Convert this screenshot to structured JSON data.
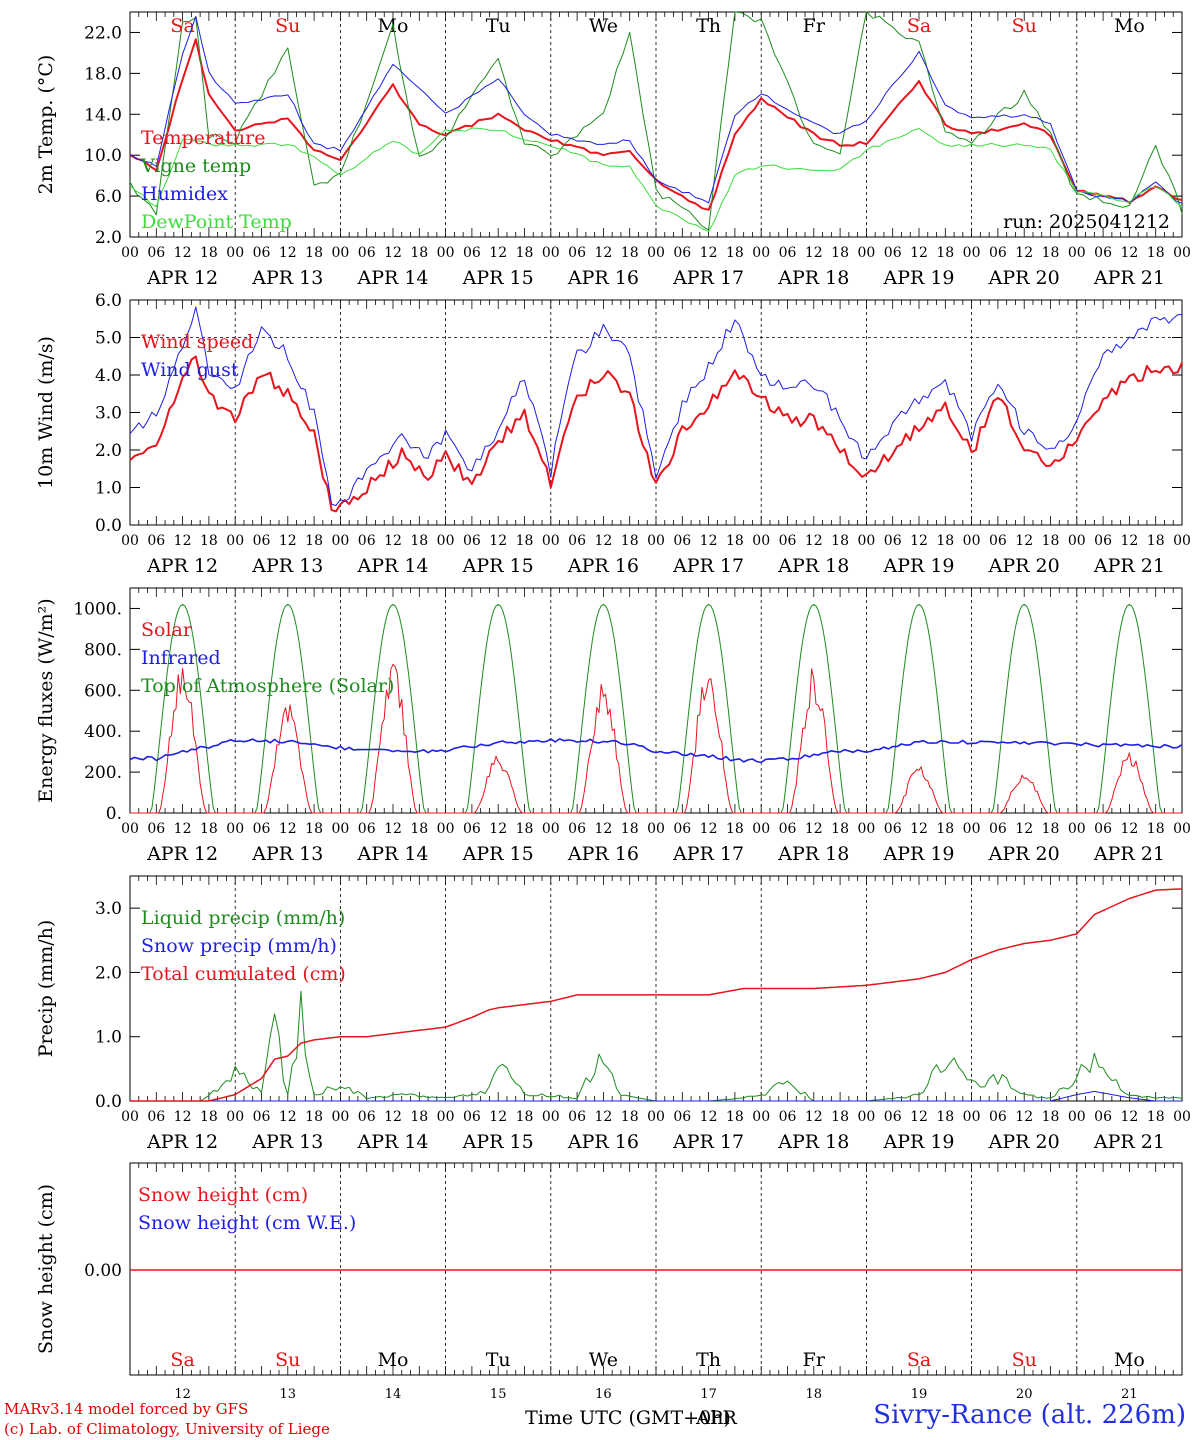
{
  "colors": {
    "red": "#e8141e",
    "blue": "#1e1ee6",
    "green": "#1e8c1e",
    "lightgreen": "#3cdc3c",
    "axis": "#000000",
    "weekend": "#e81414"
  },
  "days": [
    {
      "date": "APR 12",
      "num": "12",
      "dow": "Sa",
      "weekend": true
    },
    {
      "date": "APR 13",
      "num": "13",
      "dow": "Su",
      "weekend": true
    },
    {
      "date": "APR 14",
      "num": "14",
      "dow": "Mo",
      "weekend": false
    },
    {
      "date": "APR 15",
      "num": "15",
      "dow": "Tu",
      "weekend": false
    },
    {
      "date": "APR 16",
      "num": "16",
      "dow": "We",
      "weekend": false
    },
    {
      "date": "APR 17",
      "num": "17",
      "dow": "Th",
      "weekend": false
    },
    {
      "date": "APR 18",
      "num": "18",
      "dow": "Fr",
      "weekend": false
    },
    {
      "date": "APR 19",
      "num": "19",
      "dow": "Sa",
      "weekend": true
    },
    {
      "date": "APR 20",
      "num": "20",
      "dow": "Su",
      "weekend": true
    },
    {
      "date": "APR 21",
      "num": "21",
      "dow": "Mo",
      "weekend": false
    }
  ],
  "hour_ticks": [
    "00",
    "06",
    "12",
    "18"
  ],
  "footer": {
    "credit_1": "MARv3.14 model forced by GFS",
    "credit_2": "(c) Lab. of Climatology, University of Liege",
    "time_label": "Time UTC (GMT+0h)",
    "month": "APR",
    "site": "Sivry-Rance (alt. 226m)"
  },
  "chart_data": [
    {
      "type": "line",
      "ylabel": "2m Temp. (°C)",
      "ylim": [
        2,
        24
      ],
      "yticks": [
        "2.0",
        "6.0",
        "10.0",
        "14.0",
        "18.0",
        "22.0"
      ],
      "ytick_values": [
        2,
        6,
        10,
        14,
        18,
        22
      ],
      "annotation": "run: 2025041212",
      "x_hours": [
        0,
        6,
        12,
        15,
        18,
        24,
        36,
        42,
        48,
        60,
        66,
        72,
        84,
        90,
        96,
        108,
        114,
        120,
        132,
        138,
        144,
        156,
        162,
        168,
        180,
        186,
        192,
        204,
        210,
        216,
        228,
        234,
        240
      ],
      "series": [
        {
          "name": "Temperature",
          "color": "#e8141e",
          "width": 2,
          "values": [
            10.2,
            8.5,
            17.5,
            21.2,
            16.0,
            12.5,
            13.5,
            10.5,
            9.5,
            16.8,
            13.0,
            12.0,
            14.0,
            12.5,
            11.5,
            10.0,
            10.5,
            7.5,
            4.5,
            12.0,
            15.5,
            12.0,
            11.0,
            11.2,
            17.2,
            13.0,
            12.0,
            13.0,
            12.0,
            6.5,
            5.5,
            6.8,
            5.5
          ]
        },
        {
          "name": "Vigne temp",
          "color": "#1e8c1e",
          "width": 1,
          "values": [
            7.0,
            4.5,
            23.0,
            23.5,
            12.0,
            11.5,
            20.5,
            7.0,
            8.0,
            22.5,
            9.5,
            12.0,
            19.5,
            11.0,
            10.0,
            14.0,
            22.0,
            6.5,
            3.0,
            24.0,
            23.0,
            11.0,
            10.5,
            24.0,
            21.0,
            12.0,
            11.5,
            16.0,
            12.0,
            6.0,
            5.0,
            11.0,
            4.5
          ]
        },
        {
          "name": "Humidex",
          "color": "#1e1ee6",
          "width": 1,
          "values": [
            10.0,
            9.0,
            20.0,
            23.5,
            18.0,
            15.0,
            16.0,
            11.0,
            10.5,
            18.8,
            16.5,
            14.0,
            17.5,
            14.0,
            12.0,
            11.0,
            11.5,
            7.5,
            5.5,
            14.0,
            16.0,
            13.0,
            12.0,
            13.5,
            20.0,
            15.0,
            13.5,
            14.0,
            13.0,
            6.5,
            5.5,
            7.3,
            5.2
          ]
        },
        {
          "name": "DewPoint Temp",
          "color": "#3cdc3c",
          "width": 1,
          "values": [
            7.0,
            5.0,
            11.5,
            11.5,
            11.0,
            11.0,
            11.0,
            10.0,
            8.0,
            11.5,
            10.0,
            12.5,
            12.5,
            11.5,
            11.0,
            9.0,
            9.0,
            5.0,
            2.5,
            8.0,
            9.0,
            8.5,
            8.5,
            10.5,
            12.5,
            11.0,
            11.0,
            11.0,
            10.5,
            6.5,
            5.5,
            7.0,
            5.0
          ]
        }
      ]
    },
    {
      "type": "line",
      "ylabel": "10m Wind (m/s)",
      "ylim": [
        0,
        6
      ],
      "yticks": [
        "0.0",
        "1.0",
        "2.0",
        "3.0",
        "4.0",
        "5.0",
        "6.0"
      ],
      "ytick_values": [
        0,
        1,
        2,
        3,
        4,
        5,
        6
      ],
      "ref_line": 5.0,
      "x_hours": [
        0,
        6,
        12,
        15,
        18,
        24,
        30,
        36,
        42,
        46,
        50,
        56,
        62,
        68,
        72,
        78,
        84,
        90,
        96,
        100,
        102,
        108,
        114,
        120,
        126,
        132,
        138,
        144,
        150,
        156,
        160,
        168,
        174,
        180,
        186,
        192,
        198,
        204,
        210,
        216,
        222,
        228,
        234,
        240
      ],
      "series": [
        {
          "name": "Wind speed",
          "color": "#e8141e",
          "width": 2,
          "values": [
            1.9,
            2.2,
            3.8,
            4.5,
            3.4,
            2.8,
            4.1,
            3.5,
            2.4,
            0.4,
            0.6,
            1.2,
            1.9,
            1.3,
            1.8,
            1.1,
            2.2,
            3.0,
            1.1,
            2.9,
            3.4,
            4.1,
            3.5,
            1.0,
            2.5,
            3.2,
            4.2,
            3.4,
            2.8,
            2.8,
            2.4,
            1.2,
            2.0,
            2.6,
            3.2,
            1.9,
            3.5,
            2.1,
            1.5,
            2.3,
            3.4,
            3.8,
            4.2,
            4.2
          ]
        },
        {
          "name": "Wind gust",
          "color": "#1e1ee6",
          "width": 1,
          "values": [
            2.5,
            3.0,
            4.8,
            5.8,
            4.0,
            3.6,
            5.3,
            4.5,
            3.0,
            0.5,
            0.8,
            1.7,
            2.4,
            1.8,
            2.5,
            1.4,
            2.6,
            3.9,
            1.4,
            3.9,
            4.5,
            5.3,
            4.5,
            1.3,
            3.2,
            4.2,
            5.5,
            4.0,
            3.6,
            3.8,
            3.2,
            1.7,
            2.7,
            3.3,
            3.9,
            2.4,
            3.9,
            2.5,
            1.9,
            2.8,
            4.5,
            5.0,
            5.4,
            5.5
          ]
        }
      ]
    },
    {
      "type": "line",
      "ylabel": "Energy fluxes (W/m²)",
      "ylim": [
        0,
        1100
      ],
      "yticks": [
        "0.",
        "200.",
        "400.",
        "600.",
        "800.",
        "1000."
      ],
      "ytick_values": [
        0,
        200,
        400,
        600,
        800,
        1000
      ],
      "solar_peaks": [
        740,
        540,
        750,
        290,
        680,
        760,
        720,
        230,
        210,
        300
      ],
      "toa_peak": 1020,
      "infrared_hours": [
        0,
        6,
        12,
        18,
        24,
        36,
        48,
        60,
        72,
        84,
        96,
        108,
        114,
        120,
        132,
        138,
        144,
        156,
        162,
        168,
        180,
        192,
        204,
        216,
        228,
        240
      ],
      "series": [
        {
          "name": "Solar",
          "color": "#e8141e",
          "width": 1
        },
        {
          "name": "Infrared",
          "color": "#1e1ee6",
          "width": 1.6,
          "values": [
            270,
            265,
            300,
            325,
            355,
            350,
            320,
            300,
            305,
            345,
            355,
            350,
            340,
            300,
            280,
            260,
            255,
            280,
            305,
            300,
            350,
            345,
            345,
            335,
            330,
            325
          ]
        },
        {
          "name": "Top of Atmosphere (Solar)",
          "color": "#1e8c1e",
          "width": 1
        }
      ]
    },
    {
      "type": "line",
      "ylabel": "Precip (mm/h)",
      "ylim": [
        0,
        3.5
      ],
      "yticks": [
        "0.0",
        "1.0",
        "2.0",
        "3.0"
      ],
      "ytick_values": [
        0,
        1,
        2,
        3
      ],
      "x_hours": [
        0,
        16,
        18,
        24,
        30,
        33,
        36,
        39,
        42,
        48,
        54,
        60,
        66,
        72,
        78,
        82,
        84,
        90,
        96,
        102,
        108,
        112,
        120,
        132,
        140,
        144,
        150,
        156,
        168,
        180,
        186,
        192,
        198,
        204,
        210,
        216,
        220,
        228,
        234,
        240
      ],
      "series": [
        {
          "name": "Liquid precip (mm/h)",
          "color": "#1e8c1e",
          "width": 1,
          "values": [
            0,
            0,
            0.1,
            0.5,
            0.2,
            1.3,
            0.1,
            1.5,
            0.1,
            0.3,
            0.05,
            0.1,
            0.1,
            0.05,
            0.1,
            0.2,
            0.75,
            0.1,
            0.1,
            0.05,
            0.8,
            0.1,
            0,
            0,
            0.05,
            0.1,
            0.35,
            0,
            0,
            0.1,
            0.8,
            0.3,
            0.4,
            0.1,
            0.05,
            0.4,
            0.7,
            0.1,
            0.05,
            0.05
          ]
        },
        {
          "name": "Snow precip (mm/h)",
          "color": "#1e1ee6",
          "width": 1,
          "values": [
            0,
            0,
            0,
            0,
            0,
            0,
            0,
            0,
            0,
            0,
            0,
            0,
            0,
            0,
            0,
            0,
            0,
            0,
            0,
            0,
            0,
            0,
            0,
            0,
            0,
            0,
            0,
            0,
            0,
            0,
            0,
            0,
            0,
            0,
            0,
            0.1,
            0.15,
            0.05,
            0,
            0
          ]
        },
        {
          "name": "Total cumulated (cm)",
          "color": "#e8141e",
          "width": 1.5,
          "values": [
            0,
            0,
            0,
            0.1,
            0.35,
            0.65,
            0.7,
            0.9,
            0.95,
            1.0,
            1.0,
            1.05,
            1.1,
            1.15,
            1.3,
            1.42,
            1.45,
            1.5,
            1.55,
            1.65,
            1.65,
            1.65,
            1.65,
            1.65,
            1.75,
            1.75,
            1.75,
            1.75,
            1.8,
            1.9,
            2.0,
            2.2,
            2.35,
            2.45,
            2.5,
            2.6,
            2.9,
            3.15,
            3.28,
            3.3
          ]
        }
      ]
    },
    {
      "type": "line",
      "ylabel": "Snow height (cm)",
      "yticks": [
        "0.00"
      ],
      "series": [
        {
          "name": "Snow height (cm)",
          "color": "#e8141e",
          "width": 1.5,
          "value": 0.0
        },
        {
          "name": "Snow height (cm W.E.)",
          "color": "#1e1ee6",
          "width": 1,
          "value": 0.0
        }
      ]
    }
  ]
}
